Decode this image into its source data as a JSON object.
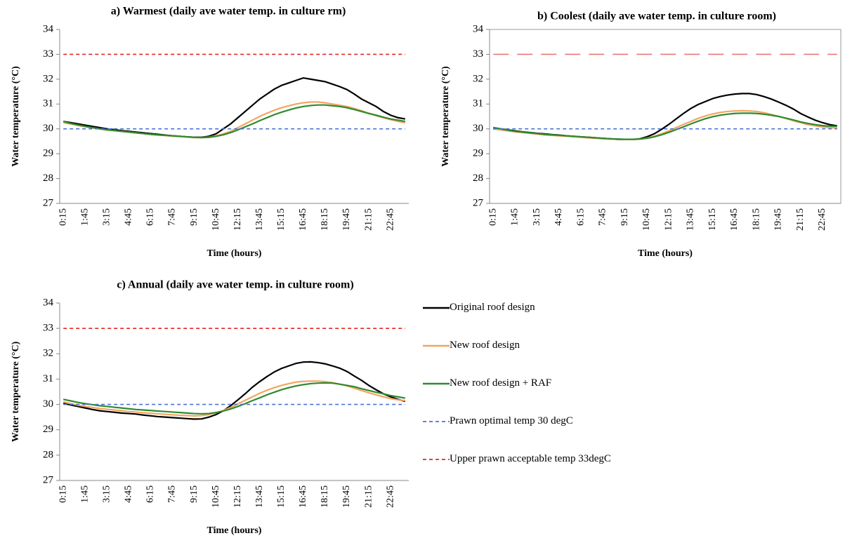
{
  "chart_data": [
    {
      "type": "line",
      "title": "a) Warmest (daily ave water temp. in culture rm)",
      "x_label": "Time (hours)",
      "y_label": "Water temperature (°C)",
      "categories": [
        "0:15",
        null,
        null,
        "1:45",
        null,
        null,
        "3:15",
        null,
        null,
        "4:45",
        null,
        null,
        "6:15",
        null,
        null,
        "7:45",
        null,
        null,
        "9:15",
        null,
        null,
        "10:45",
        null,
        null,
        "12:15",
        null,
        null,
        "13:45",
        null,
        null,
        "15:15",
        null,
        null,
        "16:45",
        null,
        null,
        "18:15",
        null,
        null,
        "19:45",
        null,
        null,
        "21:15",
        null,
        null,
        "22:45",
        null,
        null
      ],
      "ylim": [
        27,
        34
      ],
      "yticks": [
        27,
        28,
        29,
        30,
        31,
        32,
        33,
        34
      ],
      "grid": false,
      "plot_border": false,
      "series": [
        {
          "color": "#000000",
          "linestyle": "solid",
          "values": [
            30.3,
            30.25,
            30.2,
            30.15,
            30.1,
            30.05,
            30.0,
            29.97,
            29.93,
            29.9,
            29.87,
            29.84,
            29.81,
            29.78,
            29.75,
            29.72,
            29.7,
            29.68,
            29.66,
            29.66,
            29.7,
            29.8,
            30.0,
            30.2,
            30.45,
            30.7,
            30.95,
            31.2,
            31.4,
            31.6,
            31.75,
            31.85,
            31.95,
            32.05,
            32.0,
            31.95,
            31.9,
            31.8,
            31.7,
            31.58,
            31.4,
            31.2,
            31.05,
            30.9,
            30.7,
            30.55,
            30.45,
            30.4
          ]
        },
        {
          "color": "#f4a460",
          "linestyle": "solid",
          "values": [
            30.25,
            30.2,
            30.14,
            30.09,
            30.04,
            30.0,
            29.96,
            29.93,
            29.9,
            29.87,
            29.84,
            29.81,
            29.78,
            29.75,
            29.73,
            29.71,
            29.69,
            29.67,
            29.65,
            29.65,
            29.67,
            29.72,
            29.8,
            29.9,
            30.05,
            30.2,
            30.35,
            30.5,
            30.63,
            30.75,
            30.85,
            30.93,
            31.0,
            31.05,
            31.08,
            31.08,
            31.05,
            31.0,
            30.95,
            30.9,
            30.82,
            30.73,
            30.63,
            30.53,
            30.45,
            30.37,
            30.3,
            30.25
          ]
        },
        {
          "color": "#2e8b2e",
          "linestyle": "solid",
          "values": [
            30.3,
            30.22,
            30.16,
            30.1,
            30.05,
            30.0,
            29.96,
            29.93,
            29.9,
            29.87,
            29.84,
            29.81,
            29.78,
            29.76,
            29.74,
            29.72,
            29.7,
            29.68,
            29.66,
            29.65,
            29.66,
            29.7,
            29.76,
            29.85,
            29.96,
            30.08,
            30.2,
            30.33,
            30.45,
            30.57,
            30.67,
            30.76,
            30.84,
            30.9,
            30.94,
            30.96,
            30.96,
            30.93,
            30.9,
            30.85,
            30.78,
            30.7,
            30.62,
            30.55,
            30.47,
            30.4,
            30.35,
            30.3
          ]
        },
        {
          "color": "#4a72d8",
          "linestyle": "dashed",
          "values": [
            30,
            30,
            30,
            30,
            30,
            30,
            30,
            30,
            30,
            30,
            30,
            30,
            30,
            30,
            30,
            30,
            30,
            30,
            30,
            30,
            30,
            30,
            30,
            30,
            30,
            30,
            30,
            30,
            30,
            30,
            30,
            30,
            30,
            30,
            30,
            30,
            30,
            30,
            30,
            30,
            30,
            30,
            30,
            30,
            30,
            30,
            30,
            30
          ]
        },
        {
          "color": "#e02828",
          "linestyle": "dashed",
          "values": [
            33,
            33,
            33,
            33,
            33,
            33,
            33,
            33,
            33,
            33,
            33,
            33,
            33,
            33,
            33,
            33,
            33,
            33,
            33,
            33,
            33,
            33,
            33,
            33,
            33,
            33,
            33,
            33,
            33,
            33,
            33,
            33,
            33,
            33,
            33,
            33,
            33,
            33,
            33,
            33,
            33,
            33,
            33,
            33,
            33,
            33,
            33,
            33
          ]
        }
      ]
    },
    {
      "type": "line",
      "title": "b) Coolest (daily ave water temp. in culture room)",
      "x_label": "Time (hours)",
      "y_label": "Water temperature (°C)",
      "categories": [
        "0:15",
        null,
        null,
        "1:45",
        null,
        null,
        "3:15",
        null,
        null,
        "4:45",
        null,
        null,
        "6:15",
        null,
        null,
        "7:45",
        null,
        null,
        "9:15",
        null,
        null,
        "10:45",
        null,
        null,
        "12:15",
        null,
        null,
        "13:45",
        null,
        null,
        "15:15",
        null,
        null,
        "16:45",
        null,
        null,
        "18:15",
        null,
        null,
        "19:45",
        null,
        null,
        "21:15",
        null,
        null,
        "22:45",
        null,
        null
      ],
      "ylim": [
        27,
        34
      ],
      "yticks": [
        27,
        28,
        29,
        30,
        31,
        32,
        33,
        34
      ],
      "grid": false,
      "plot_border": true,
      "series": [
        {
          "color": "#000000",
          "linestyle": "solid",
          "values": [
            30.05,
            30.0,
            29.96,
            29.92,
            29.88,
            29.85,
            29.82,
            29.8,
            29.77,
            29.75,
            29.72,
            29.7,
            29.68,
            29.66,
            29.64,
            29.62,
            29.6,
            29.58,
            29.57,
            29.57,
            29.6,
            29.68,
            29.8,
            29.98,
            30.18,
            30.4,
            30.62,
            30.82,
            30.98,
            31.1,
            31.22,
            31.3,
            31.36,
            31.4,
            31.42,
            31.42,
            31.38,
            31.3,
            31.2,
            31.08,
            30.95,
            30.8,
            30.62,
            30.48,
            30.35,
            30.25,
            30.17,
            30.12
          ]
        },
        {
          "color": "#f4a460",
          "linestyle": "solid",
          "values": [
            30.0,
            29.96,
            29.92,
            29.88,
            29.85,
            29.82,
            29.79,
            29.76,
            29.74,
            29.72,
            29.7,
            29.68,
            29.66,
            29.64,
            29.62,
            29.6,
            29.59,
            29.58,
            29.57,
            29.57,
            29.59,
            29.63,
            29.7,
            29.8,
            29.92,
            30.05,
            30.18,
            30.3,
            30.42,
            30.52,
            30.6,
            30.66,
            30.7,
            30.72,
            30.73,
            30.72,
            30.7,
            30.65,
            30.58,
            30.5,
            30.42,
            30.33,
            30.25,
            30.17,
            30.12,
            30.08,
            30.05,
            30.03
          ]
        },
        {
          "color": "#2e8b2e",
          "linestyle": "solid",
          "values": [
            30.05,
            30.0,
            29.95,
            29.9,
            29.87,
            29.84,
            29.81,
            29.78,
            29.76,
            29.74,
            29.72,
            29.7,
            29.68,
            29.66,
            29.64,
            29.62,
            29.6,
            29.59,
            29.58,
            29.58,
            29.59,
            29.62,
            29.68,
            29.76,
            29.86,
            29.97,
            30.08,
            30.2,
            30.31,
            30.41,
            30.49,
            30.55,
            30.59,
            30.62,
            30.63,
            30.63,
            30.62,
            30.59,
            30.55,
            30.5,
            30.43,
            30.36,
            30.28,
            30.22,
            30.17,
            30.13,
            30.11,
            30.1
          ]
        },
        {
          "color": "#4a72d8",
          "linestyle": "dashed",
          "values": [
            30,
            30,
            30,
            30,
            30,
            30,
            30,
            30,
            30,
            30,
            30,
            30,
            30,
            30,
            30,
            30,
            30,
            30,
            30,
            30,
            30,
            30,
            30,
            30,
            30,
            30,
            30,
            30,
            30,
            30,
            30,
            30,
            30,
            30,
            30,
            30,
            30,
            30,
            30,
            30,
            30,
            30,
            30,
            30,
            30,
            30,
            30,
            30
          ]
        },
        {
          "color": "#e87878",
          "linestyle": "long-dashed",
          "values": [
            33,
            33,
            33,
            33,
            33,
            33,
            33,
            33,
            33,
            33,
            33,
            33,
            33,
            33,
            33,
            33,
            33,
            33,
            33,
            33,
            33,
            33,
            33,
            33,
            33,
            33,
            33,
            33,
            33,
            33,
            33,
            33,
            33,
            33,
            33,
            33,
            33,
            33,
            33,
            33,
            33,
            33,
            33,
            33,
            33,
            33,
            33,
            33
          ]
        }
      ]
    },
    {
      "type": "line",
      "title": "c) Annual (daily ave water temp. in culture room)",
      "x_label": "Time (hours)",
      "y_label": "Water temperature (°C)",
      "categories": [
        "0:15",
        null,
        null,
        "1:45",
        null,
        null,
        "3:15",
        null,
        null,
        "4:45",
        null,
        null,
        "6:15",
        null,
        null,
        "7:45",
        null,
        null,
        "9:15",
        null,
        null,
        "10:45",
        null,
        null,
        "12:15",
        null,
        null,
        "13:45",
        null,
        null,
        "15:15",
        null,
        null,
        "16:45",
        null,
        null,
        "18:15",
        null,
        null,
        "19:45",
        null,
        null,
        "21:15",
        null,
        null,
        "22:45",
        null,
        null
      ],
      "ylim": [
        27,
        34
      ],
      "yticks": [
        27,
        28,
        29,
        30,
        31,
        32,
        33,
        34
      ],
      "grid": false,
      "plot_border": false,
      "series": [
        {
          "name": "Original roof design",
          "color": "#000000",
          "linestyle": "solid",
          "values": [
            30.05,
            29.98,
            29.92,
            29.86,
            29.8,
            29.75,
            29.72,
            29.69,
            29.66,
            29.64,
            29.62,
            29.58,
            29.55,
            29.52,
            29.5,
            29.48,
            29.46,
            29.44,
            29.42,
            29.43,
            29.5,
            29.6,
            29.75,
            29.95,
            30.18,
            30.42,
            30.68,
            30.9,
            31.1,
            31.28,
            31.42,
            31.52,
            31.62,
            31.67,
            31.68,
            31.65,
            31.6,
            31.52,
            31.43,
            31.3,
            31.12,
            30.95,
            30.75,
            30.58,
            30.42,
            30.3,
            30.2,
            30.12
          ]
        },
        {
          "name": "New roof design",
          "color": "#f4a460",
          "linestyle": "solid",
          "values": [
            30.1,
            30.03,
            29.97,
            29.92,
            29.88,
            29.84,
            29.81,
            29.78,
            29.75,
            29.72,
            29.7,
            29.67,
            29.65,
            29.63,
            29.61,
            29.59,
            29.57,
            29.56,
            29.55,
            29.56,
            29.6,
            29.67,
            29.76,
            29.88,
            30.02,
            30.16,
            30.3,
            30.44,
            30.56,
            30.66,
            30.75,
            30.82,
            30.88,
            30.91,
            30.92,
            30.92,
            30.9,
            30.86,
            30.8,
            30.73,
            30.64,
            30.55,
            30.46,
            30.38,
            30.3,
            30.23,
            30.18,
            30.15
          ]
        },
        {
          "name": "New roof design + RAF",
          "color": "#2e8b2e",
          "linestyle": "solid",
          "values": [
            30.2,
            30.14,
            30.08,
            30.03,
            29.99,
            29.95,
            29.92,
            29.89,
            29.86,
            29.83,
            29.8,
            29.78,
            29.76,
            29.74,
            29.72,
            29.7,
            29.68,
            29.66,
            29.64,
            29.63,
            29.64,
            29.68,
            29.74,
            29.82,
            29.92,
            30.03,
            30.15,
            30.26,
            30.38,
            30.48,
            30.58,
            30.66,
            30.73,
            30.78,
            30.82,
            30.84,
            30.85,
            30.84,
            30.8,
            30.75,
            30.7,
            30.62,
            30.55,
            30.48,
            30.42,
            30.35,
            30.3,
            30.25
          ]
        },
        {
          "name": "Prawn optimal temp 30 degC",
          "color": "#4a72d8",
          "linestyle": "dashed",
          "values": [
            30,
            30,
            30,
            30,
            30,
            30,
            30,
            30,
            30,
            30,
            30,
            30,
            30,
            30,
            30,
            30,
            30,
            30,
            30,
            30,
            30,
            30,
            30,
            30,
            30,
            30,
            30,
            30,
            30,
            30,
            30,
            30,
            30,
            30,
            30,
            30,
            30,
            30,
            30,
            30,
            30,
            30,
            30,
            30,
            30,
            30,
            30,
            30
          ]
        },
        {
          "name": "Upper prawn acceptable temp 33degC",
          "color": "#e02828",
          "linestyle": "dashed",
          "values": [
            33,
            33,
            33,
            33,
            33,
            33,
            33,
            33,
            33,
            33,
            33,
            33,
            33,
            33,
            33,
            33,
            33,
            33,
            33,
            33,
            33,
            33,
            33,
            33,
            33,
            33,
            33,
            33,
            33,
            33,
            33,
            33,
            33,
            33,
            33,
            33,
            33,
            33,
            33,
            33,
            33,
            33,
            33,
            33,
            33,
            33,
            33,
            33
          ]
        }
      ]
    }
  ]
}
